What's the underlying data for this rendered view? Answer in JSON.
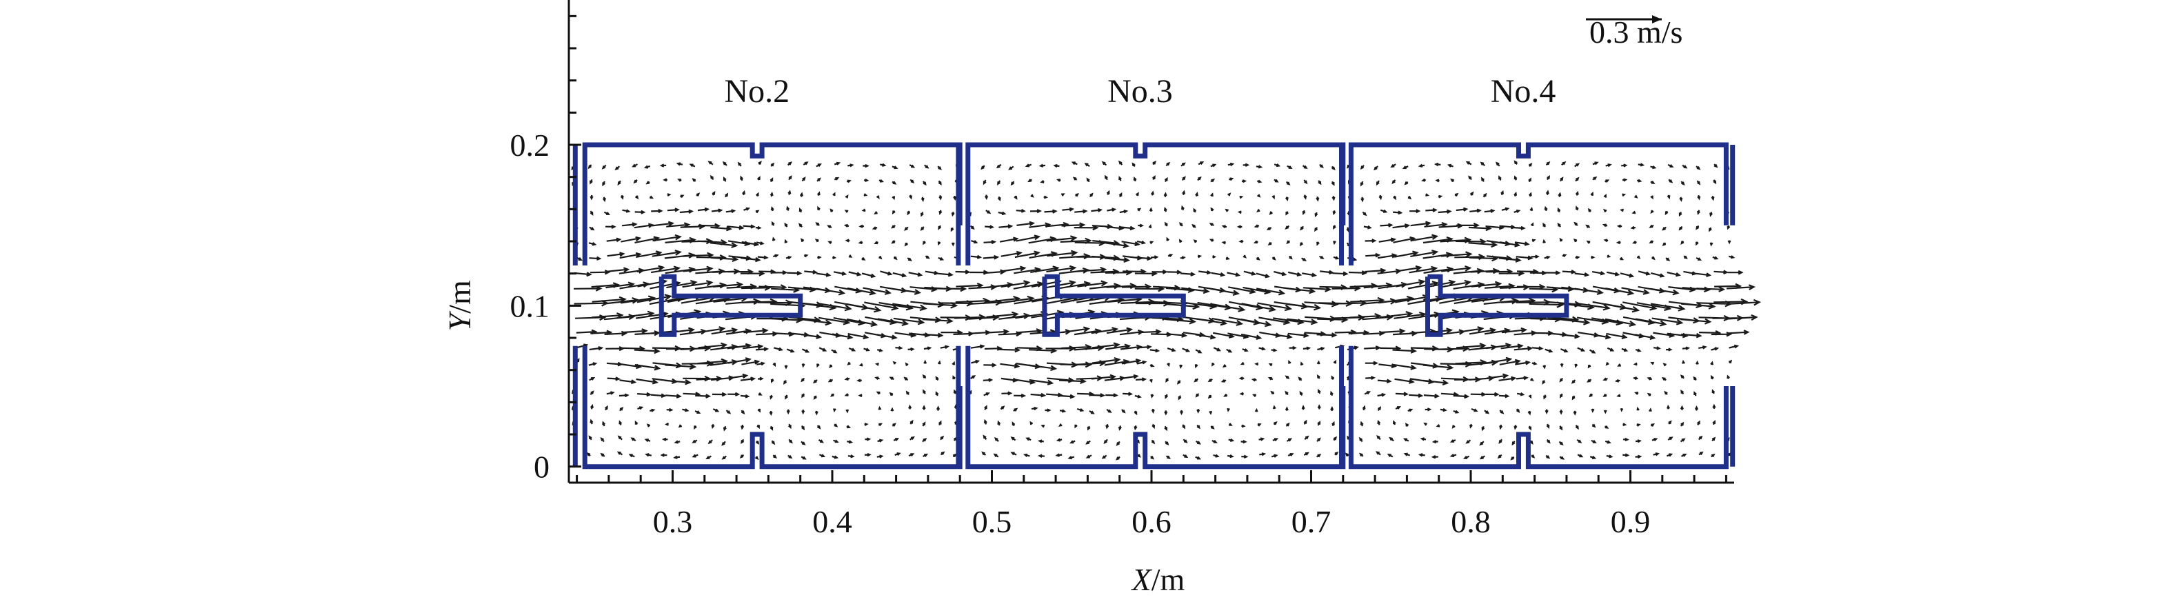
{
  "chart_data": {
    "type": "vector_field",
    "xlabel_italic": "X",
    "xlabel_unit": "/m",
    "ylabel_italic": "Y",
    "ylabel_unit": "/m",
    "xlim": [
      0.235,
      0.965
    ],
    "ylim": [
      -0.01,
      0.29
    ],
    "x_ticks": [
      0.3,
      0.4,
      0.5,
      0.6,
      0.7,
      0.8,
      0.9
    ],
    "x_tick_labels": [
      "0.3",
      "0.4",
      "0.5",
      "0.6",
      "0.7",
      "0.8",
      "0.9"
    ],
    "y_ticks": [
      0,
      0.1,
      0.2
    ],
    "y_tick_labels": [
      "0",
      "0.1",
      "0.2"
    ],
    "reference_vector": {
      "value": 0.3,
      "label": "0.3 m/s"
    },
    "chambers": [
      {
        "label": "No.2",
        "x_start": 0.245,
        "x_mid": 0.35,
        "x_end": 0.48,
        "label_x": 0.355
      },
      {
        "label": "No.3",
        "x_start": 0.485,
        "x_mid": 0.59,
        "x_end": 0.72,
        "label_x": 0.595
      },
      {
        "label": "No.4",
        "x_start": 0.725,
        "x_mid": 0.83,
        "x_end": 0.96,
        "label_x": 0.835
      }
    ],
    "flow": {
      "inlet_y": 0.1,
      "jet_half_width": 0.022,
      "grid_dx": 0.0095,
      "grid_dy": 0.0095
    },
    "colors": {
      "wall": "#1f2f8a",
      "vectors": "#1a1a1a"
    }
  }
}
